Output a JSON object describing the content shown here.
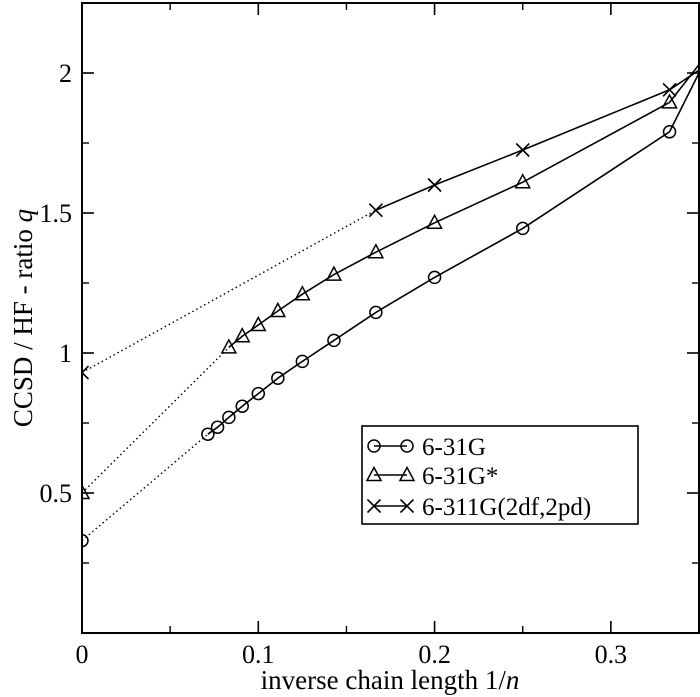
{
  "chart_data": {
    "type": "line",
    "xlabel_main": "inverse chain length 1/",
    "xlabel_var": "n",
    "ylabel_main": "CCSD / HF - ratio ",
    "ylabel_var": "q",
    "xlim": [
      0,
      0.35
    ],
    "ylim": [
      0,
      2.25
    ],
    "x_ticks": [
      0,
      0.1,
      0.2,
      0.3
    ],
    "x_tick_labels": [
      "0",
      "0.1",
      "0.2",
      "0.3"
    ],
    "y_ticks": [
      0.5,
      1,
      1.5,
      2
    ],
    "y_tick_labels": [
      "0.5",
      "1",
      "1.5",
      "2"
    ],
    "grid": false,
    "legend_position": "bottom-right",
    "series": [
      {
        "name": "6-31G",
        "marker": "circle",
        "x": [
          0.0714,
          0.0769,
          0.0833,
          0.0909,
          0.1,
          0.1111,
          0.125,
          0.1429,
          0.1667,
          0.2,
          0.25,
          0.3333,
          0.35
        ],
        "y": [
          0.71,
          0.735,
          0.77,
          0.81,
          0.855,
          0.91,
          0.97,
          1.045,
          1.145,
          1.27,
          1.445,
          1.79,
          2.0
        ],
        "extrapolation": {
          "x": [
            0,
            0.0714
          ],
          "y": [
            0.33,
            0.71
          ]
        }
      },
      {
        "name": "6-31G*",
        "marker": "triangle",
        "x": [
          0.0833,
          0.0909,
          0.1,
          0.1111,
          0.125,
          0.1429,
          0.1667,
          0.2,
          0.25,
          0.3333,
          0.35
        ],
        "y": [
          1.02,
          1.06,
          1.1,
          1.15,
          1.21,
          1.28,
          1.36,
          1.465,
          1.61,
          1.895,
          2.03
        ],
        "extrapolation": {
          "x": [
            0,
            0.0833
          ],
          "y": [
            0.5,
            1.02
          ]
        }
      },
      {
        "name": "6-311G(2df,2pd)",
        "marker": "cross",
        "x": [
          0.1667,
          0.2,
          0.25,
          0.3333,
          0.35
        ],
        "y": [
          1.51,
          1.6,
          1.725,
          1.94,
          2.01
        ],
        "extrapolation": {
          "x": [
            0,
            0.1667
          ],
          "y": [
            0.93,
            1.51
          ]
        }
      }
    ]
  }
}
